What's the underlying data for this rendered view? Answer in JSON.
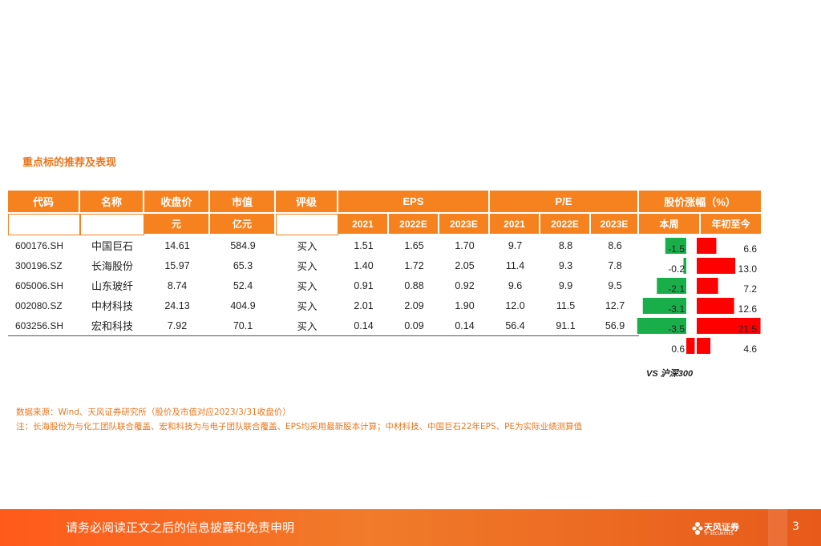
{
  "section_title": "重点标的推荐及表现",
  "headers": {
    "code": "代码",
    "name": "名称",
    "close": "收盘价",
    "mcap": "市值",
    "rating": "评级",
    "eps": "EPS",
    "pe": "P/E",
    "change": "股价涨幅（%）"
  },
  "subheaders": {
    "close_unit": "元",
    "mcap_unit": "亿元",
    "eps_years": [
      "2021",
      "2022E",
      "2023E"
    ],
    "pe_years": [
      "2021",
      "2022E",
      "2023E"
    ],
    "week": "本周",
    "ytd": "年初至今"
  },
  "rows": [
    {
      "code": "600176.SH",
      "name": "中国巨石",
      "close": "14.61",
      "mcap": "584.9",
      "rating": "买入",
      "eps": [
        "1.51",
        "1.65",
        "1.70"
      ],
      "pe": [
        "9.7",
        "8.8",
        "8.6"
      ],
      "week": "-1.5",
      "ytd": "6.6"
    },
    {
      "code": "300196.SZ",
      "name": "长海股份",
      "close": "15.97",
      "mcap": "65.3",
      "rating": "买入",
      "eps": [
        "1.40",
        "1.72",
        "2.05"
      ],
      "pe": [
        "11.4",
        "9.3",
        "7.8"
      ],
      "week": "-0.2",
      "ytd": "13.0"
    },
    {
      "code": "605006.SH",
      "name": "山东玻纤",
      "close": "8.74",
      "mcap": "52.4",
      "rating": "买入",
      "eps": [
        "0.91",
        "0.88",
        "0.92"
      ],
      "pe": [
        "9.6",
        "9.9",
        "9.5"
      ],
      "week": "-2.1",
      "ytd": "7.2"
    },
    {
      "code": "002080.SZ",
      "name": "中材科技",
      "close": "24.13",
      "mcap": "404.9",
      "rating": "买入",
      "eps": [
        "2.01",
        "2.09",
        "1.90"
      ],
      "pe": [
        "12.0",
        "11.5",
        "12.7"
      ],
      "week": "-3.1",
      "ytd": "12.6"
    },
    {
      "code": "603256.SH",
      "name": "宏和科技",
      "close": "7.92",
      "mcap": "70.1",
      "rating": "买入",
      "eps": [
        "0.14",
        "0.09",
        "0.14"
      ],
      "pe": [
        "56.4",
        "91.1",
        "56.9"
      ],
      "week": "-3.5",
      "ytd": "21.5"
    }
  ],
  "vs_row": {
    "week": "0.6",
    "ytd": "4.6"
  },
  "vs_label": "VS 沪深300",
  "colors": {
    "accent": "#f5821f",
    "positive": "#ff0000",
    "negative": "#1aae4b"
  },
  "notes": [
    "数据来源：Wind、天风证券研究所（股价及市值对应2023/3/31收盘价）",
    "注：长海股份为与化工团队联合覆盖、宏和科技为与电子团队联合覆盖、EPS均采用最新股本计算；中材科技、中国巨石22年EPS、PE为实际业绩测算值"
  ],
  "footer": {
    "disclaimer": "请务必阅读正文之后的信息披露和免责申明",
    "brand": "天风证券",
    "brand_en": "TF SECURITIES",
    "page": "3"
  }
}
